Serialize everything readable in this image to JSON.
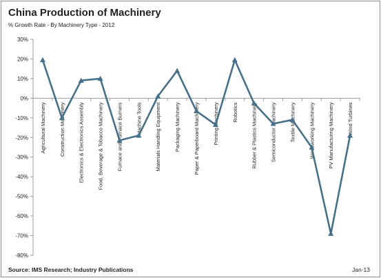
{
  "title": "China Production of Machinery",
  "subtitle": "% Growth Rate - By Machinery Type - 2012",
  "source": "Source: IMS Research; Industry Publications",
  "date": "Jan-13",
  "colors": {
    "line": "#46708a",
    "axis": "#9a9a9a",
    "text": "#222222"
  },
  "chart_data": {
    "type": "line",
    "title": "China Production of Machinery",
    "subtitle": "% Growth Rate - By Machinery Type - 2012",
    "xlabel": "",
    "ylabel": "",
    "ylim": [
      -80,
      30
    ],
    "y_ticks": [
      30,
      20,
      10,
      0,
      -10,
      -20,
      -30,
      -40,
      -50,
      -60,
      -70,
      -80
    ],
    "y_tick_labels": [
      "30%",
      "20%",
      "10%",
      "0%",
      "-10%",
      "-20%",
      "-30%",
      "-40%",
      "-50%",
      "-60%",
      "-70%",
      "-80%"
    ],
    "grid": false,
    "legend": "none",
    "marker": "triangle",
    "categories": [
      "Agricultural Machinery",
      "Construction Machinery",
      "Electronics & Electronics Assembly",
      "Food, Beverage & Tobacco Machinery",
      "Furnace and Furnace Burners",
      "Machine Tools",
      "Materials Handling Equipment",
      "Packaging Machinery",
      "Paper & Paperboard Machinery",
      "Printing Machinery",
      "Robotics",
      "Rubber & Plastics Machinery",
      "Semiconductor Machinery",
      "Textile Machinery",
      "Woodworking Machinery",
      "PV Manufacturing Machinery",
      "Wind Turbines"
    ],
    "values": [
      19.5,
      -10,
      9,
      10,
      -21.5,
      -19,
      1,
      14,
      -6.5,
      -13.5,
      19.5,
      -2.5,
      -13,
      -11,
      -25,
      -69,
      -19
    ]
  }
}
